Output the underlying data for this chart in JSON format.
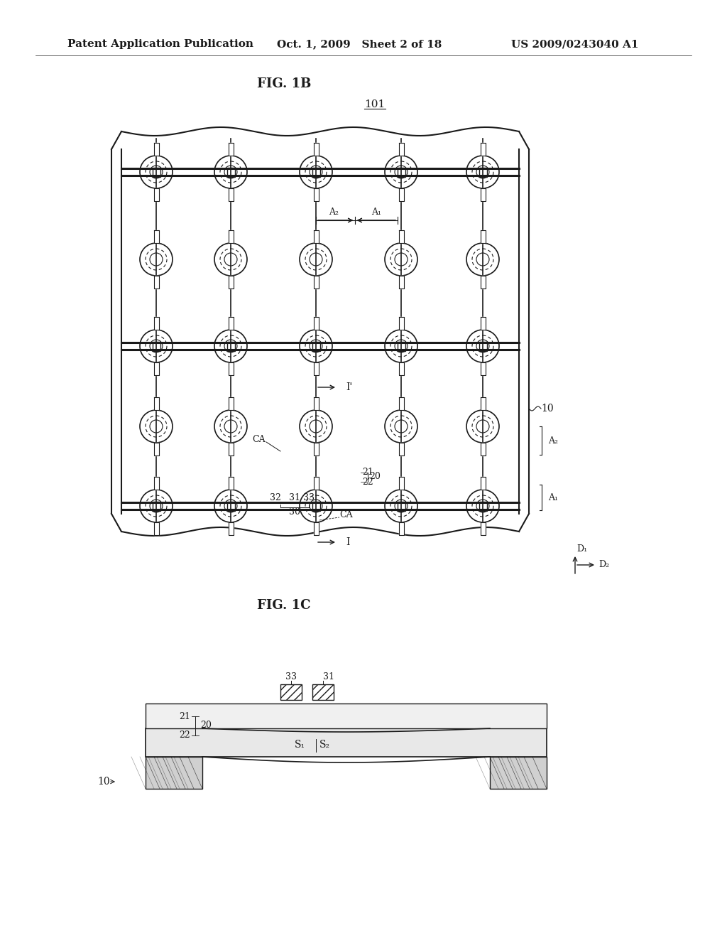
{
  "bg_color": "#ffffff",
  "header_left": "Patent Application Publication",
  "header_mid": "Oct. 1, 2009   Sheet 2 of 18",
  "header_right": "US 2009/0243040 A1",
  "fig1b_title": "FIG. 1B",
  "fig1c_title": "FIG. 1C",
  "label_101": "101",
  "label_10": "10",
  "label_I": "I",
  "label_Iprime": "I'",
  "label_CA": "CA",
  "label_20": "20",
  "label_21": "21",
  "label_22": "22",
  "label_30": "30",
  "label_31": "31",
  "label_32": "32",
  "label_33": "33",
  "label_A1_top": "A₁",
  "label_A2_top": "A₂",
  "label_A1_side": "A₁",
  "label_A2_side": "A₂",
  "label_D1": "D₁",
  "label_D2": "D₂",
  "label_S1": "S₁",
  "label_S2": "S₂"
}
